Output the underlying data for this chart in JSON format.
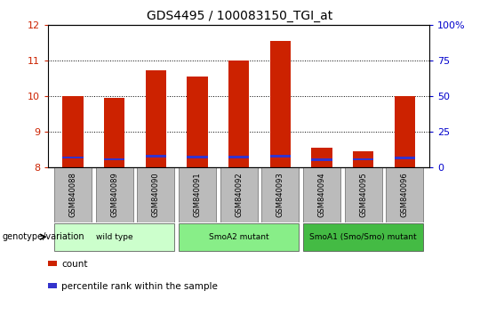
{
  "title": "GDS4495 / 100083150_TGI_at",
  "samples": [
    "GSM840088",
    "GSM840089",
    "GSM840090",
    "GSM840091",
    "GSM840092",
    "GSM840093",
    "GSM840094",
    "GSM840095",
    "GSM840096"
  ],
  "count_values": [
    10.0,
    9.95,
    10.72,
    10.55,
    11.0,
    11.55,
    8.55,
    8.45,
    10.0
  ],
  "percentile_values": [
    8.27,
    8.22,
    8.3,
    8.28,
    8.28,
    8.3,
    8.2,
    8.22,
    8.26
  ],
  "bar_bottom": 8.0,
  "bar_color": "#cc2200",
  "percentile_color": "#3333cc",
  "ylim_left": [
    8,
    12
  ],
  "ylim_right": [
    0,
    100
  ],
  "yticks_left": [
    8,
    9,
    10,
    11,
    12
  ],
  "yticks_right": [
    0,
    25,
    50,
    75,
    100
  ],
  "yticklabels_right": [
    "0",
    "25",
    "50",
    "75",
    "100%"
  ],
  "groups": [
    {
      "label": "wild type",
      "start": 0,
      "end": 2,
      "color": "#ccffcc"
    },
    {
      "label": "SmoA2 mutant",
      "start": 3,
      "end": 5,
      "color": "#88ee88"
    },
    {
      "label": "SmoA1 (Smo/Smo) mutant",
      "start": 6,
      "end": 8,
      "color": "#44bb44"
    }
  ],
  "genotype_label": "genotype/variation",
  "legend_count": "count",
  "legend_percentile": "percentile rank within the sample",
  "bar_width": 0.5,
  "grid_color": "#000000",
  "tick_color_left": "#cc2200",
  "tick_color_right": "#0000cc",
  "bg_color": "#ffffff",
  "sample_box_color": "#bbbbbb"
}
